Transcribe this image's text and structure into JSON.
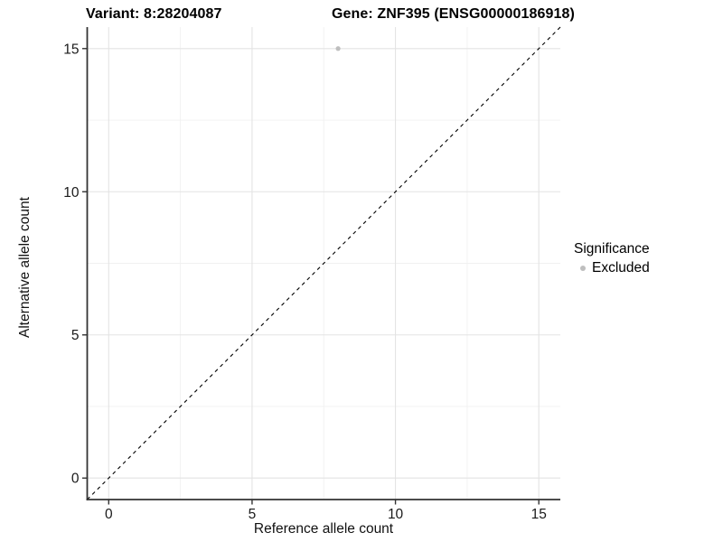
{
  "colors": {
    "background": "#FFFFFF",
    "axis_line": "#333333",
    "tick_label": "#1A1A1A",
    "grid_major": "#E3E3E3",
    "grid_minor": "#F1F1F1",
    "point": "#BEBEBE",
    "reference_line": "#000000",
    "title_text": "#000000"
  },
  "header": {
    "variant_title": "Variant: 8:28204087",
    "gene_title": "Gene: ZNF395 (ENSG00000186918)"
  },
  "chart_data": {
    "type": "scatter",
    "xlabel": "Reference allele count",
    "ylabel": "Alternative allele count",
    "xlim": [
      -0.75,
      15.75
    ],
    "ylim": [
      -0.75,
      15.75
    ],
    "x_ticks": [
      0,
      5,
      10,
      15
    ],
    "y_ticks": [
      0,
      5,
      10,
      15
    ],
    "x_minor_ticks": [
      2.5,
      7.5,
      12.5
    ],
    "y_minor_ticks": [
      2.5,
      7.5,
      12.5
    ],
    "grid": "major+minor",
    "points": [
      {
        "x": 8,
        "y": 15,
        "series": "Excluded"
      }
    ],
    "point_radius": 2.6,
    "reference_line": {
      "kind": "identity",
      "from": [
        -0.75,
        -0.75
      ],
      "to": [
        15.75,
        15.75
      ],
      "style": "dashed"
    },
    "legend": {
      "title": "Significance",
      "position": "right",
      "items": [
        {
          "label": "Excluded",
          "marker": "circle",
          "color": "#BEBEBE"
        }
      ]
    }
  }
}
